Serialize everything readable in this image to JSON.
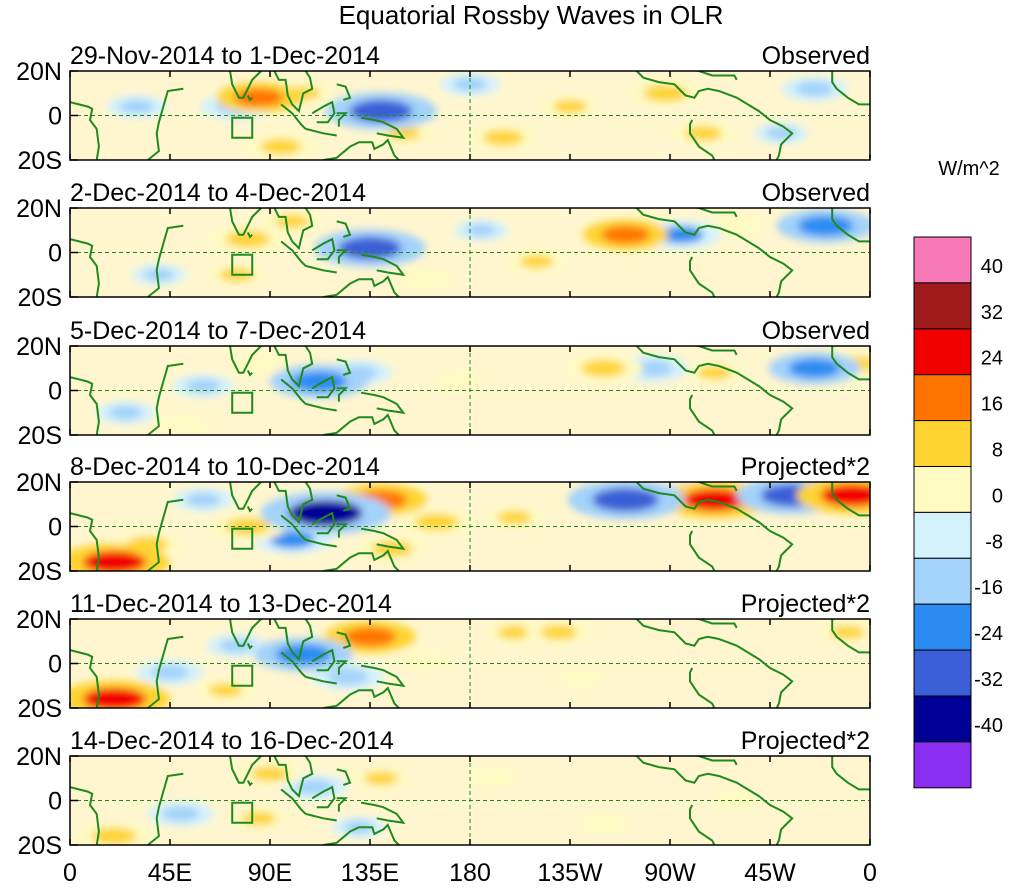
{
  "chart_data": {
    "type": "heatmap",
    "title": "Equatorial Rossby Waves in OLR",
    "units": "W/m^2",
    "x_ticks": [
      "0",
      "45E",
      "90E",
      "135E",
      "180",
      "135W",
      "90W",
      "45W",
      "0"
    ],
    "y_ticks": [
      "20N",
      "0",
      "20S"
    ],
    "longitude_range": [
      0,
      360
    ],
    "latitude_range": [
      -20,
      20
    ],
    "colorbar": {
      "labels": [
        "40",
        "32",
        "24",
        "16",
        "8",
        "0",
        "-8",
        "-16",
        "-24",
        "-32",
        "-40"
      ],
      "levels": [
        40,
        32,
        24,
        16,
        8,
        0,
        -8,
        -16,
        -24,
        -32,
        -40
      ],
      "colors": [
        "#f77ab6",
        "#a01c1c",
        "#f20000",
        "#ff7400",
        "#ffd430",
        "#fffac2",
        "#d4f2fc",
        "#a3d2fa",
        "#2a8cf2",
        "#3a5fd6",
        "#000096",
        "#8a2ef2"
      ]
    },
    "panels": [
      {
        "date_range": "29-Nov-2014 to 1-Dec-2014",
        "label": "Observed",
        "anomalies": [
          {
            "lon": 85,
            "lat": 8,
            "value": 18
          },
          {
            "lon": 95,
            "lat": -14,
            "value": 14
          },
          {
            "lon": 105,
            "lat": 10,
            "value": 10
          },
          {
            "lon": 140,
            "lat": 2,
            "value": -26
          },
          {
            "lon": 75,
            "lat": 4,
            "value": -14
          },
          {
            "lon": 30,
            "lat": 4,
            "value": -10
          },
          {
            "lon": 150,
            "lat": -8,
            "value": 10
          },
          {
            "lon": 195,
            "lat": -10,
            "value": 14
          },
          {
            "lon": 225,
            "lat": 4,
            "value": 10
          },
          {
            "lon": 268,
            "lat": 10,
            "value": 16
          },
          {
            "lon": 285,
            "lat": -8,
            "value": 12
          },
          {
            "lon": 320,
            "lat": -8,
            "value": -8
          },
          {
            "lon": 335,
            "lat": 12,
            "value": -12
          },
          {
            "lon": 180,
            "lat": 14,
            "value": -10
          }
        ]
      },
      {
        "date_range": "2-Dec-2014 to 4-Dec-2014",
        "label": "Observed",
        "anomalies": [
          {
            "lon": 135,
            "lat": 2,
            "value": -26
          },
          {
            "lon": 80,
            "lat": 6,
            "value": 16
          },
          {
            "lon": 75,
            "lat": -10,
            "value": 10
          },
          {
            "lon": 100,
            "lat": 14,
            "value": 10
          },
          {
            "lon": 210,
            "lat": -4,
            "value": 10
          },
          {
            "lon": 250,
            "lat": 8,
            "value": 18
          },
          {
            "lon": 275,
            "lat": 8,
            "value": -16
          },
          {
            "lon": 300,
            "lat": 12,
            "value": 8
          },
          {
            "lon": 340,
            "lat": 12,
            "value": -22
          },
          {
            "lon": 40,
            "lat": -10,
            "value": -8
          },
          {
            "lon": 185,
            "lat": 10,
            "value": -8
          },
          {
            "lon": 160,
            "lat": -12,
            "value": 8
          }
        ]
      },
      {
        "date_range": "5-Dec-2014 to 7-Dec-2014",
        "label": "Observed",
        "anomalies": [
          {
            "lon": 112,
            "lat": 4,
            "value": -22
          },
          {
            "lon": 130,
            "lat": 8,
            "value": -12
          },
          {
            "lon": 60,
            "lat": 2,
            "value": -10
          },
          {
            "lon": 25,
            "lat": -10,
            "value": -10
          },
          {
            "lon": 240,
            "lat": 10,
            "value": 16
          },
          {
            "lon": 262,
            "lat": 10,
            "value": -14
          },
          {
            "lon": 290,
            "lat": 8,
            "value": 10
          },
          {
            "lon": 335,
            "lat": 10,
            "value": -20
          },
          {
            "lon": 355,
            "lat": 12,
            "value": 12
          },
          {
            "lon": 175,
            "lat": 4,
            "value": 6
          },
          {
            "lon": 85,
            "lat": 12,
            "value": 8
          },
          {
            "lon": 50,
            "lat": -16,
            "value": 8
          }
        ]
      },
      {
        "date_range": "8-Dec-2014 to 10-Dec-2014",
        "label": "Projected*2",
        "anomalies": [
          {
            "lon": 115,
            "lat": 6,
            "value": -32
          },
          {
            "lon": 100,
            "lat": -6,
            "value": -16
          },
          {
            "lon": 140,
            "lat": 12,
            "value": 20
          },
          {
            "lon": 165,
            "lat": 2,
            "value": 16
          },
          {
            "lon": 145,
            "lat": -10,
            "value": 14
          },
          {
            "lon": 80,
            "lat": 0,
            "value": 16
          },
          {
            "lon": 20,
            "lat": -16,
            "value": 26
          },
          {
            "lon": 35,
            "lat": -8,
            "value": 14
          },
          {
            "lon": 250,
            "lat": 12,
            "value": -28
          },
          {
            "lon": 235,
            "lat": 12,
            "value": 12
          },
          {
            "lon": 290,
            "lat": 12,
            "value": 26
          },
          {
            "lon": 280,
            "lat": 14,
            "value": -16
          },
          {
            "lon": 325,
            "lat": 14,
            "value": -26
          },
          {
            "lon": 352,
            "lat": 14,
            "value": 26
          },
          {
            "lon": 200,
            "lat": 4,
            "value": 10
          },
          {
            "lon": 60,
            "lat": 12,
            "value": -10
          }
        ]
      },
      {
        "date_range": "11-Dec-2014 to 13-Dec-2014",
        "label": "Projected*2",
        "anomalies": [
          {
            "lon": 105,
            "lat": 4,
            "value": -22
          },
          {
            "lon": 125,
            "lat": -6,
            "value": -14
          },
          {
            "lon": 135,
            "lat": 12,
            "value": 20
          },
          {
            "lon": 20,
            "lat": -16,
            "value": 26
          },
          {
            "lon": 45,
            "lat": -4,
            "value": -12
          },
          {
            "lon": 75,
            "lat": 8,
            "value": -10
          },
          {
            "lon": 70,
            "lat": -12,
            "value": 10
          },
          {
            "lon": 200,
            "lat": 14,
            "value": 10
          },
          {
            "lon": 220,
            "lat": 14,
            "value": 12
          },
          {
            "lon": 230,
            "lat": -6,
            "value": 6
          },
          {
            "lon": 160,
            "lat": 2,
            "value": 8
          },
          {
            "lon": 350,
            "lat": 14,
            "value": 10
          }
        ]
      },
      {
        "date_range": "14-Dec-2014 to 16-Dec-2014",
        "label": "Projected*2",
        "anomalies": [
          {
            "lon": 110,
            "lat": 6,
            "value": -12
          },
          {
            "lon": 50,
            "lat": -6,
            "value": -12
          },
          {
            "lon": 20,
            "lat": -16,
            "value": 16
          },
          {
            "lon": 90,
            "lat": 12,
            "value": 12
          },
          {
            "lon": 85,
            "lat": -8,
            "value": 10
          },
          {
            "lon": 140,
            "lat": 10,
            "value": 10
          },
          {
            "lon": 130,
            "lat": -12,
            "value": -8
          },
          {
            "lon": 190,
            "lat": 10,
            "value": 6
          },
          {
            "lon": 240,
            "lat": -10,
            "value": 6
          },
          {
            "lon": 300,
            "lat": 0,
            "value": 6
          }
        ]
      }
    ]
  }
}
